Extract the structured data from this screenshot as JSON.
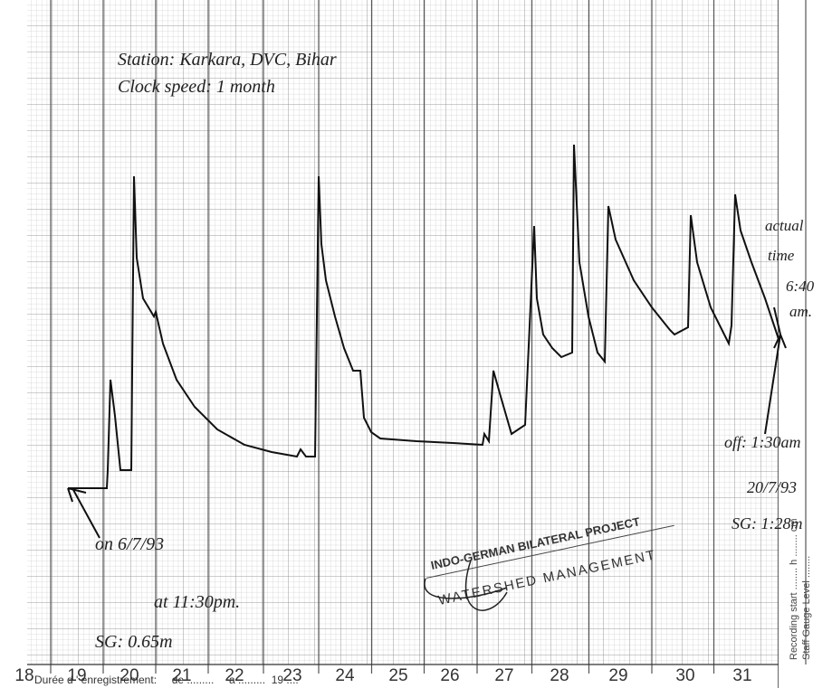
{
  "annotations": {
    "station": "Station: Karkara, DVC, Bihar",
    "clock": "Clock speed: 1 month",
    "on": [
      "on 6/7/93",
      "at 11:30pm.",
      "SG: 0.65m"
    ],
    "off": [
      "off: 1:30am",
      "20/7/93",
      "SG: 1:28m"
    ],
    "actual": [
      "actual",
      "time",
      "6:40",
      "am."
    ]
  },
  "stamp": {
    "line1": "INDO-GERMAN BILATERAL PROJECT",
    "line2": "WATERSHED MANAGEMENT"
  },
  "side_labels": [
    "Recording start ........ h ........ cm",
    "Staff Gauge Level ........"
  ],
  "days": [
    18,
    19,
    20,
    21,
    22,
    23,
    24,
    25,
    26,
    27,
    28,
    29,
    30,
    31
  ],
  "footer": "Durée d ' enregistrement:     de .........     a .........  19 ...."
}
